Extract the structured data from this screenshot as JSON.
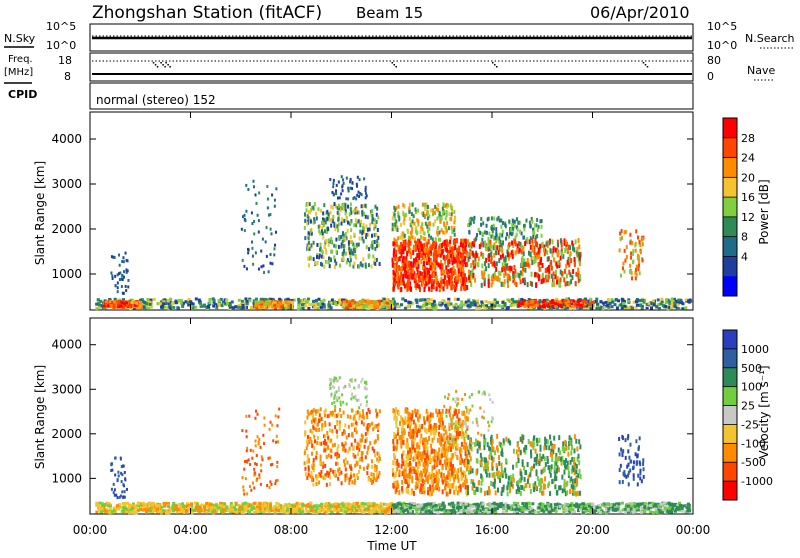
{
  "header": {
    "station": "Zhongshan Station (fitACF)",
    "beam": "Beam 15",
    "date": "06/Apr/2010"
  },
  "status_panels": {
    "nsky_label": "N.Sky",
    "nsearch_label": "N.Search",
    "freq_label": "Freq.",
    "freq_unit": "[MHz]",
    "nave_label": "Nave",
    "cpid_label": "CPID",
    "cpid_text": "normal (stereo) 152",
    "noise_ticks_left": [
      "10^5",
      "10^0"
    ],
    "noise_ticks_right": [
      "10^5",
      "10^0"
    ],
    "freq_ticks": [
      "18",
      "8"
    ],
    "nave_ticks": [
      "80",
      "0"
    ]
  },
  "chart_data": [
    {
      "type": "heatmap",
      "panel": "power",
      "ylabel": "Slant Range [km]",
      "xlabel": "",
      "y_ticks": [
        1000,
        2000,
        3000,
        4000
      ],
      "ylim": [
        200,
        4600
      ],
      "x_ticks": [
        "00:00",
        "04:00",
        "08:00",
        "12:00",
        "16:00",
        "20:00",
        "00:00"
      ],
      "colorbar": {
        "label": "Power [dB]",
        "ticks": [
          "28",
          "24",
          "20",
          "16",
          "12",
          "8",
          "4"
        ],
        "colors": [
          "#ff0000",
          "#ff4500",
          "#ff8c00",
          "#f4c430",
          "#7fcf3f",
          "#2e8b57",
          "#1e6b8a",
          "#1f3f9f",
          "#0000ff"
        ]
      }
    },
    {
      "type": "heatmap",
      "panel": "velocity",
      "ylabel": "Slant Range [km]",
      "xlabel": "Time UT",
      "y_ticks": [
        1000,
        2000,
        3000,
        4000
      ],
      "ylim": [
        200,
        4600
      ],
      "x_ticks": [
        "00:00",
        "04:00",
        "08:00",
        "12:00",
        "16:00",
        "20:00",
        "00:00"
      ],
      "colorbar": {
        "label": "Velocity [m s⁻¹]",
        "ticks": [
          "1000",
          "500",
          "100",
          "25",
          "-25",
          "-100",
          "-500",
          "-1000"
        ],
        "colors": [
          "#2a3fbf",
          "#2f5fa0",
          "#2e8b57",
          "#6fcf3f",
          "#c8c8c8",
          "#f4c430",
          "#ff8c00",
          "#ff4500",
          "#ff0000"
        ]
      }
    }
  ]
}
